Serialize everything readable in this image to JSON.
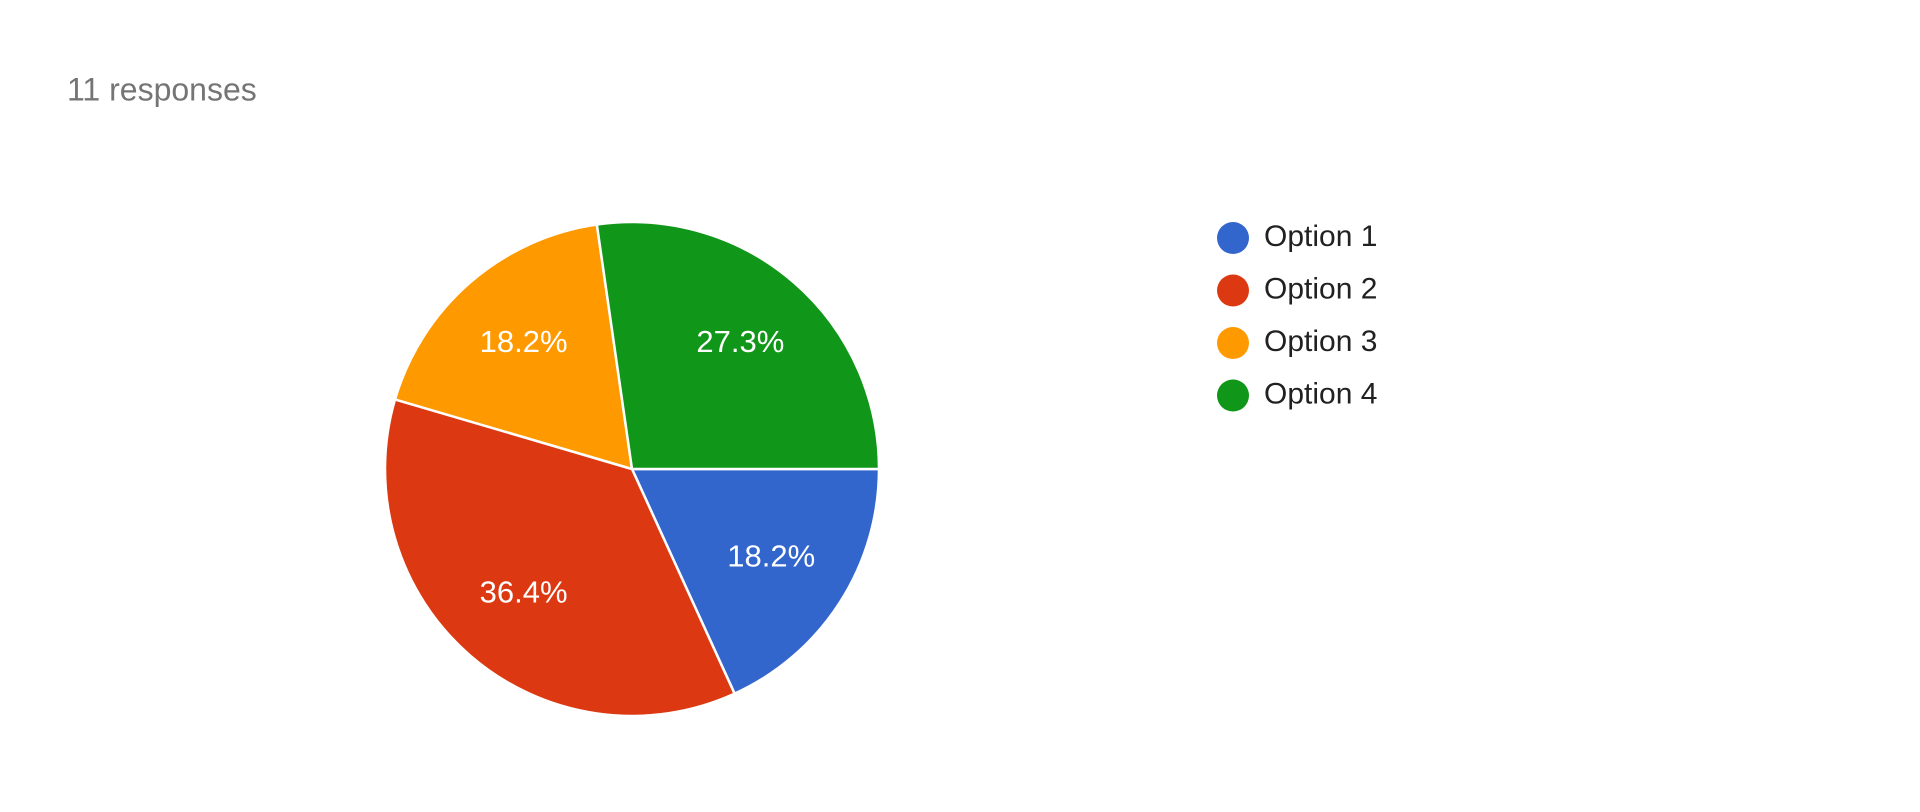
{
  "chart_data": {
    "type": "pie",
    "subtitle": "11 responses",
    "categories": [
      "Option 1",
      "Option 2",
      "Option 3",
      "Option 4"
    ],
    "values": [
      18.2,
      36.4,
      18.2,
      27.3
    ],
    "value_labels": [
      "18.2%",
      "36.4%",
      "18.2%",
      "27.3%"
    ],
    "colors": [
      "#3366cc",
      "#dc3912",
      "#ff9900",
      "#109618"
    ],
    "legend": "right"
  }
}
